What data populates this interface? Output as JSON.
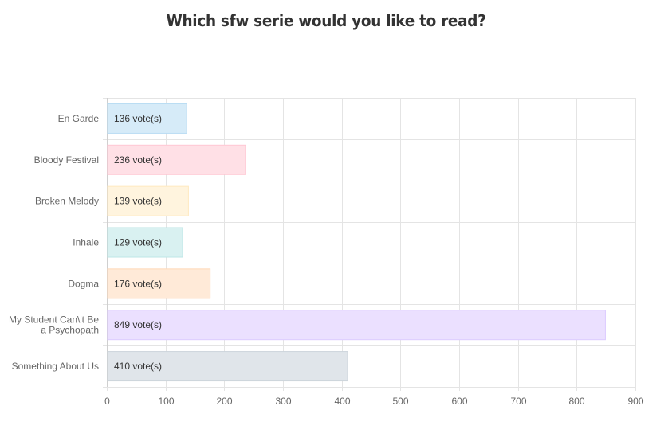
{
  "chart_data": {
    "type": "bar",
    "orientation": "horizontal",
    "title": "Which sfw serie would you like to read?",
    "categories": [
      "En Garde",
      "Bloody Festival",
      "Broken Melody",
      "Inhale",
      "Dogma",
      "My Student Can\\'t Be a Psychopath",
      "Something About Us"
    ],
    "category_lines": [
      [
        "En Garde"
      ],
      [
        "Bloody Festival"
      ],
      [
        "Broken Melody"
      ],
      [
        "Inhale"
      ],
      [
        "Dogma"
      ],
      [
        "My Student Can\\'t Be",
        "a Psychopath"
      ],
      [
        "Something About Us"
      ]
    ],
    "values": [
      136,
      236,
      139,
      129,
      176,
      849,
      410
    ],
    "data_labels": [
      "136 vote(s)",
      "236 vote(s)",
      "139 vote(s)",
      "129 vote(s)",
      "176 vote(s)",
      "849 vote(s)",
      "410 vote(s)"
    ],
    "colors": [
      "#d6ebf8",
      "#ffe0e6",
      "#fff4de",
      "#d9f1f1",
      "#ffead8",
      "#ebe0ff",
      "#e0e5ea"
    ],
    "border_colors": [
      "#b9dcf3",
      "#ffc7d3",
      "#ffe9bf",
      "#bde6e6",
      "#ffd8b8",
      "#dccbff",
      "#cdd4db"
    ],
    "xlim": [
      0,
      900
    ],
    "xticks": [
      0,
      100,
      200,
      300,
      400,
      500,
      600,
      700,
      800,
      900
    ],
    "grid": true,
    "legend": "none"
  }
}
